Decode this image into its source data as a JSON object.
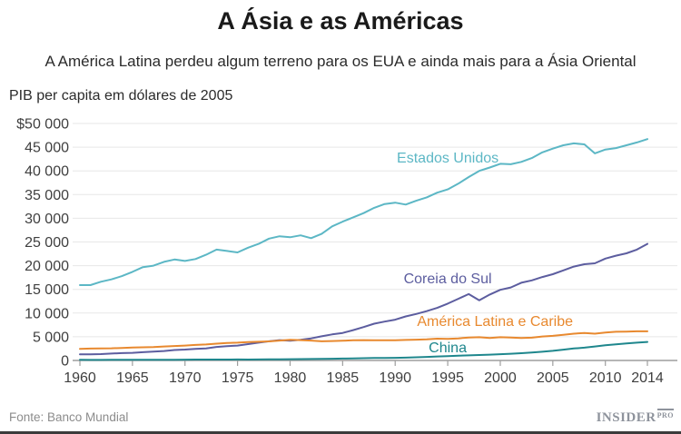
{
  "header": {
    "title": "A Ásia e as Américas",
    "subtitle": "A América Latina perdeu algum terreno para os EUA e ainda mais para a Ásia Oriental",
    "unit_label": "PIB per capita em dólares de 2005"
  },
  "footer": {
    "source": "Fonte: Banco Mundial",
    "brand": "INSIDER",
    "brand_suffix": "PRO"
  },
  "chart_data": {
    "type": "line",
    "title": "A Ásia e as Américas",
    "ylabel": "PIB per capita em dólares de 2005",
    "xlim": [
      1960,
      2014
    ],
    "ylim": [
      0,
      50000
    ],
    "grid": "horizontal",
    "legend": "inline-labels",
    "xticks": [
      1960,
      1965,
      1970,
      1975,
      1980,
      1985,
      1990,
      1995,
      2000,
      2005,
      2010,
      2014
    ],
    "yticks": {
      "values": [
        50000,
        45000,
        40000,
        35000,
        30000,
        25000,
        20000,
        15000,
        10000,
        5000,
        0
      ],
      "labels": [
        "$50 000",
        "45 000",
        "40 000",
        "35 000",
        "30 000",
        "25 000",
        "20 000",
        "15 000",
        "10 000",
        "5 000",
        "0"
      ]
    },
    "years": [
      1960,
      1961,
      1962,
      1963,
      1964,
      1965,
      1966,
      1967,
      1968,
      1969,
      1970,
      1971,
      1972,
      1973,
      1974,
      1975,
      1976,
      1977,
      1978,
      1979,
      1980,
      1981,
      1982,
      1983,
      1984,
      1985,
      1986,
      1987,
      1988,
      1989,
      1990,
      1991,
      1992,
      1993,
      1994,
      1995,
      1996,
      1997,
      1998,
      1999,
      2000,
      2001,
      2002,
      2003,
      2004,
      2005,
      2006,
      2007,
      2008,
      2009,
      2010,
      2011,
      2012,
      2013,
      2014
    ],
    "series": [
      {
        "name": "Estados Unidos",
        "slug": "estados-unidos",
        "color": "#5cb7c5",
        "label_pos": {
          "x": 1995,
          "y": 42500
        },
        "values": [
          15900,
          15900,
          16600,
          17100,
          17800,
          18700,
          19700,
          20000,
          20800,
          21300,
          21000,
          21400,
          22300,
          23400,
          23100,
          22800,
          23800,
          24600,
          25700,
          26200,
          26000,
          26400,
          25800,
          26700,
          28300,
          29300,
          30200,
          31100,
          32200,
          33000,
          33300,
          32900,
          33700,
          34400,
          35400,
          36100,
          37300,
          38700,
          40000,
          40700,
          41500,
          41400,
          41900,
          42700,
          43900,
          44700,
          45400,
          45800,
          45600,
          43700,
          44500,
          44800,
          45400,
          46000,
          46700
        ]
      },
      {
        "name": "Coreia do Sul",
        "slug": "coreia-do-sul",
        "color": "#5c5d9f",
        "label_pos": {
          "x": 1995,
          "y": 17000
        },
        "values": [
          1300,
          1300,
          1350,
          1450,
          1550,
          1600,
          1750,
          1850,
          2000,
          2200,
          2300,
          2450,
          2550,
          2850,
          3000,
          3150,
          3450,
          3750,
          4050,
          4300,
          4150,
          4350,
          4650,
          5100,
          5500,
          5800,
          6400,
          7050,
          7750,
          8200,
          8600,
          9300,
          9800,
          10400,
          11100,
          12000,
          13000,
          14000,
          12700,
          13900,
          14900,
          15400,
          16400,
          16900,
          17600,
          18200,
          19000,
          19800,
          20300,
          20500,
          21500,
          22100,
          22600,
          23400,
          24600
        ]
      },
      {
        "name": "América Latina e Caribe",
        "slug": "america-latina-e-caribe",
        "color": "#e8892f",
        "label_pos": {
          "x": 1999.5,
          "y": 8000
        },
        "values": [
          2450,
          2500,
          2550,
          2570,
          2650,
          2720,
          2780,
          2840,
          2950,
          3050,
          3150,
          3270,
          3380,
          3550,
          3700,
          3750,
          3870,
          3950,
          4030,
          4200,
          4350,
          4300,
          4200,
          4050,
          4100,
          4150,
          4250,
          4300,
          4280,
          4280,
          4250,
          4320,
          4380,
          4450,
          4600,
          4550,
          4650,
          4850,
          4900,
          4750,
          4900,
          4850,
          4750,
          4800,
          5050,
          5200,
          5400,
          5650,
          5800,
          5650,
          5900,
          6050,
          6100,
          6150,
          6150
        ]
      },
      {
        "name": "China",
        "slug": "china",
        "color": "#1f878d",
        "label_pos": {
          "x": 1995,
          "y": 2500
        },
        "values": [
          150,
          120,
          120,
          130,
          140,
          150,
          160,
          150,
          150,
          160,
          180,
          190,
          190,
          200,
          200,
          210,
          200,
          220,
          240,
          250,
          270,
          280,
          300,
          330,
          370,
          410,
          440,
          480,
          520,
          530,
          550,
          600,
          670,
          750,
          840,
          920,
          1000,
          1080,
          1150,
          1230,
          1320,
          1420,
          1540,
          1680,
          1840,
          2030,
          2280,
          2520,
          2700,
          2950,
          3200,
          3400,
          3600,
          3750,
          3900
        ]
      }
    ],
    "colors": {
      "gridline": "#e7e7e7",
      "axis": "#9e9e9e",
      "tick_label": "#3f3f3f"
    }
  }
}
